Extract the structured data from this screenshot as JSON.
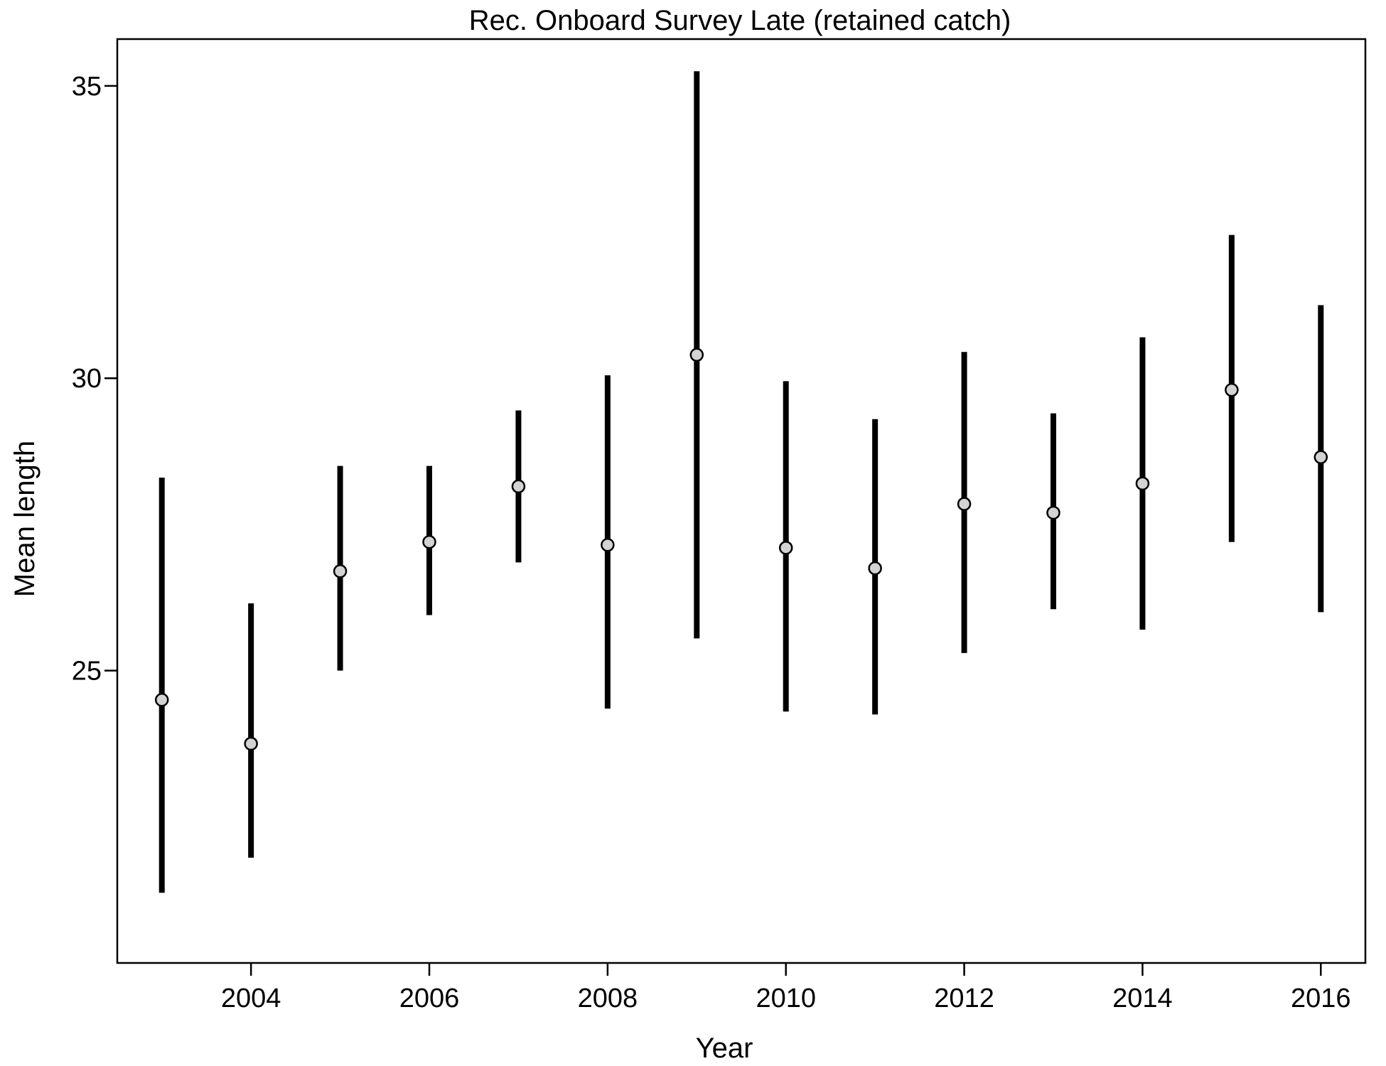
{
  "chart_data": {
    "type": "scatter",
    "title": "Rec. Onboard Survey Late (retained catch)",
    "xlabel": "Year",
    "ylabel": "Mean length",
    "xlim": [
      2002.5,
      2016.5
    ],
    "ylim": [
      20.0,
      35.8
    ],
    "x_ticks": [
      2004,
      2006,
      2008,
      2010,
      2012,
      2014,
      2016
    ],
    "y_ticks": [
      25,
      30,
      35
    ],
    "grid": false,
    "legend": "none",
    "colors": {
      "interval": "#000000",
      "point_fill": "#d3d3d3",
      "point_stroke": "#000000"
    },
    "series": [
      {
        "x": [
          2003,
          2004,
          2005,
          2006,
          2007,
          2008,
          2009,
          2010,
          2011,
          2012,
          2013,
          2014,
          2015,
          2016
        ],
        "y": [
          24.5,
          23.75,
          26.7,
          27.2,
          28.15,
          27.15,
          30.4,
          27.1,
          26.75,
          27.85,
          27.7,
          28.2,
          29.8,
          28.65
        ],
        "lower": [
          21.2,
          21.8,
          25.0,
          25.95,
          26.85,
          24.35,
          25.55,
          24.3,
          24.25,
          25.3,
          26.05,
          25.7,
          27.2,
          26.0
        ],
        "upper": [
          28.3,
          26.15,
          28.5,
          28.5,
          29.45,
          30.05,
          35.25,
          29.95,
          29.3,
          30.45,
          29.4,
          30.7,
          32.45,
          31.25
        ]
      }
    ]
  }
}
